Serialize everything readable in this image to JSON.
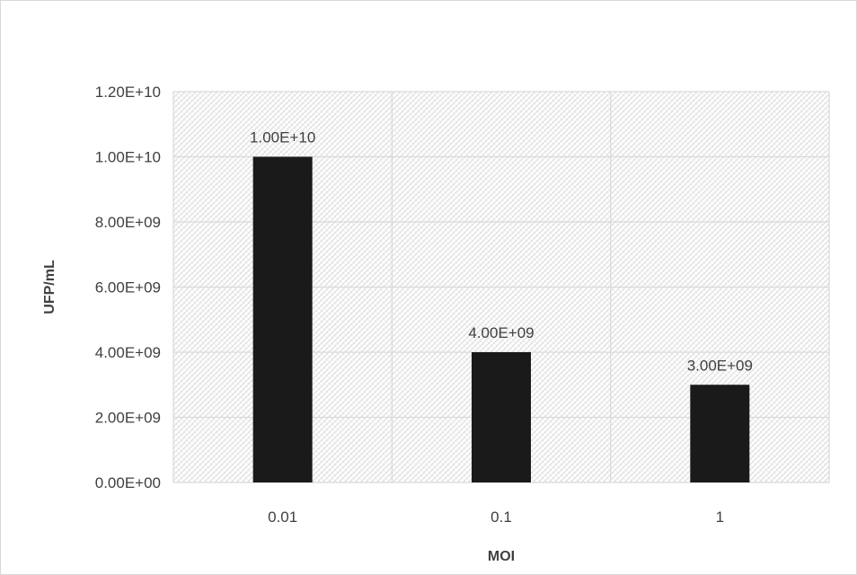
{
  "chart_data": {
    "type": "bar",
    "title": "",
    "xlabel": "MOI",
    "ylabel": "UFP/mL",
    "categories": [
      "0.01",
      "0.1",
      "1"
    ],
    "values": [
      10000000000.0,
      4000000000.0,
      3000000000.0
    ],
    "data_labels": [
      "1.00E+10",
      "4.00E+09",
      "3.00E+09"
    ],
    "ylim": [
      0,
      12000000000.0
    ],
    "yticks": [
      0,
      2000000000.0,
      4000000000.0,
      6000000000.0,
      8000000000.0,
      10000000000.0,
      12000000000.0
    ],
    "ytick_labels": [
      "0.00E+00",
      "2.00E+09",
      "4.00E+09",
      "6.00E+09",
      "8.00E+09",
      "1.00E+10",
      "1.20E+10"
    ],
    "grid": true,
    "legend": "none",
    "colors": {
      "bar": "#1a1a1a",
      "grid": "#d9d9d9",
      "text": "#404040",
      "plot_pattern": "#cfcfcf"
    }
  }
}
